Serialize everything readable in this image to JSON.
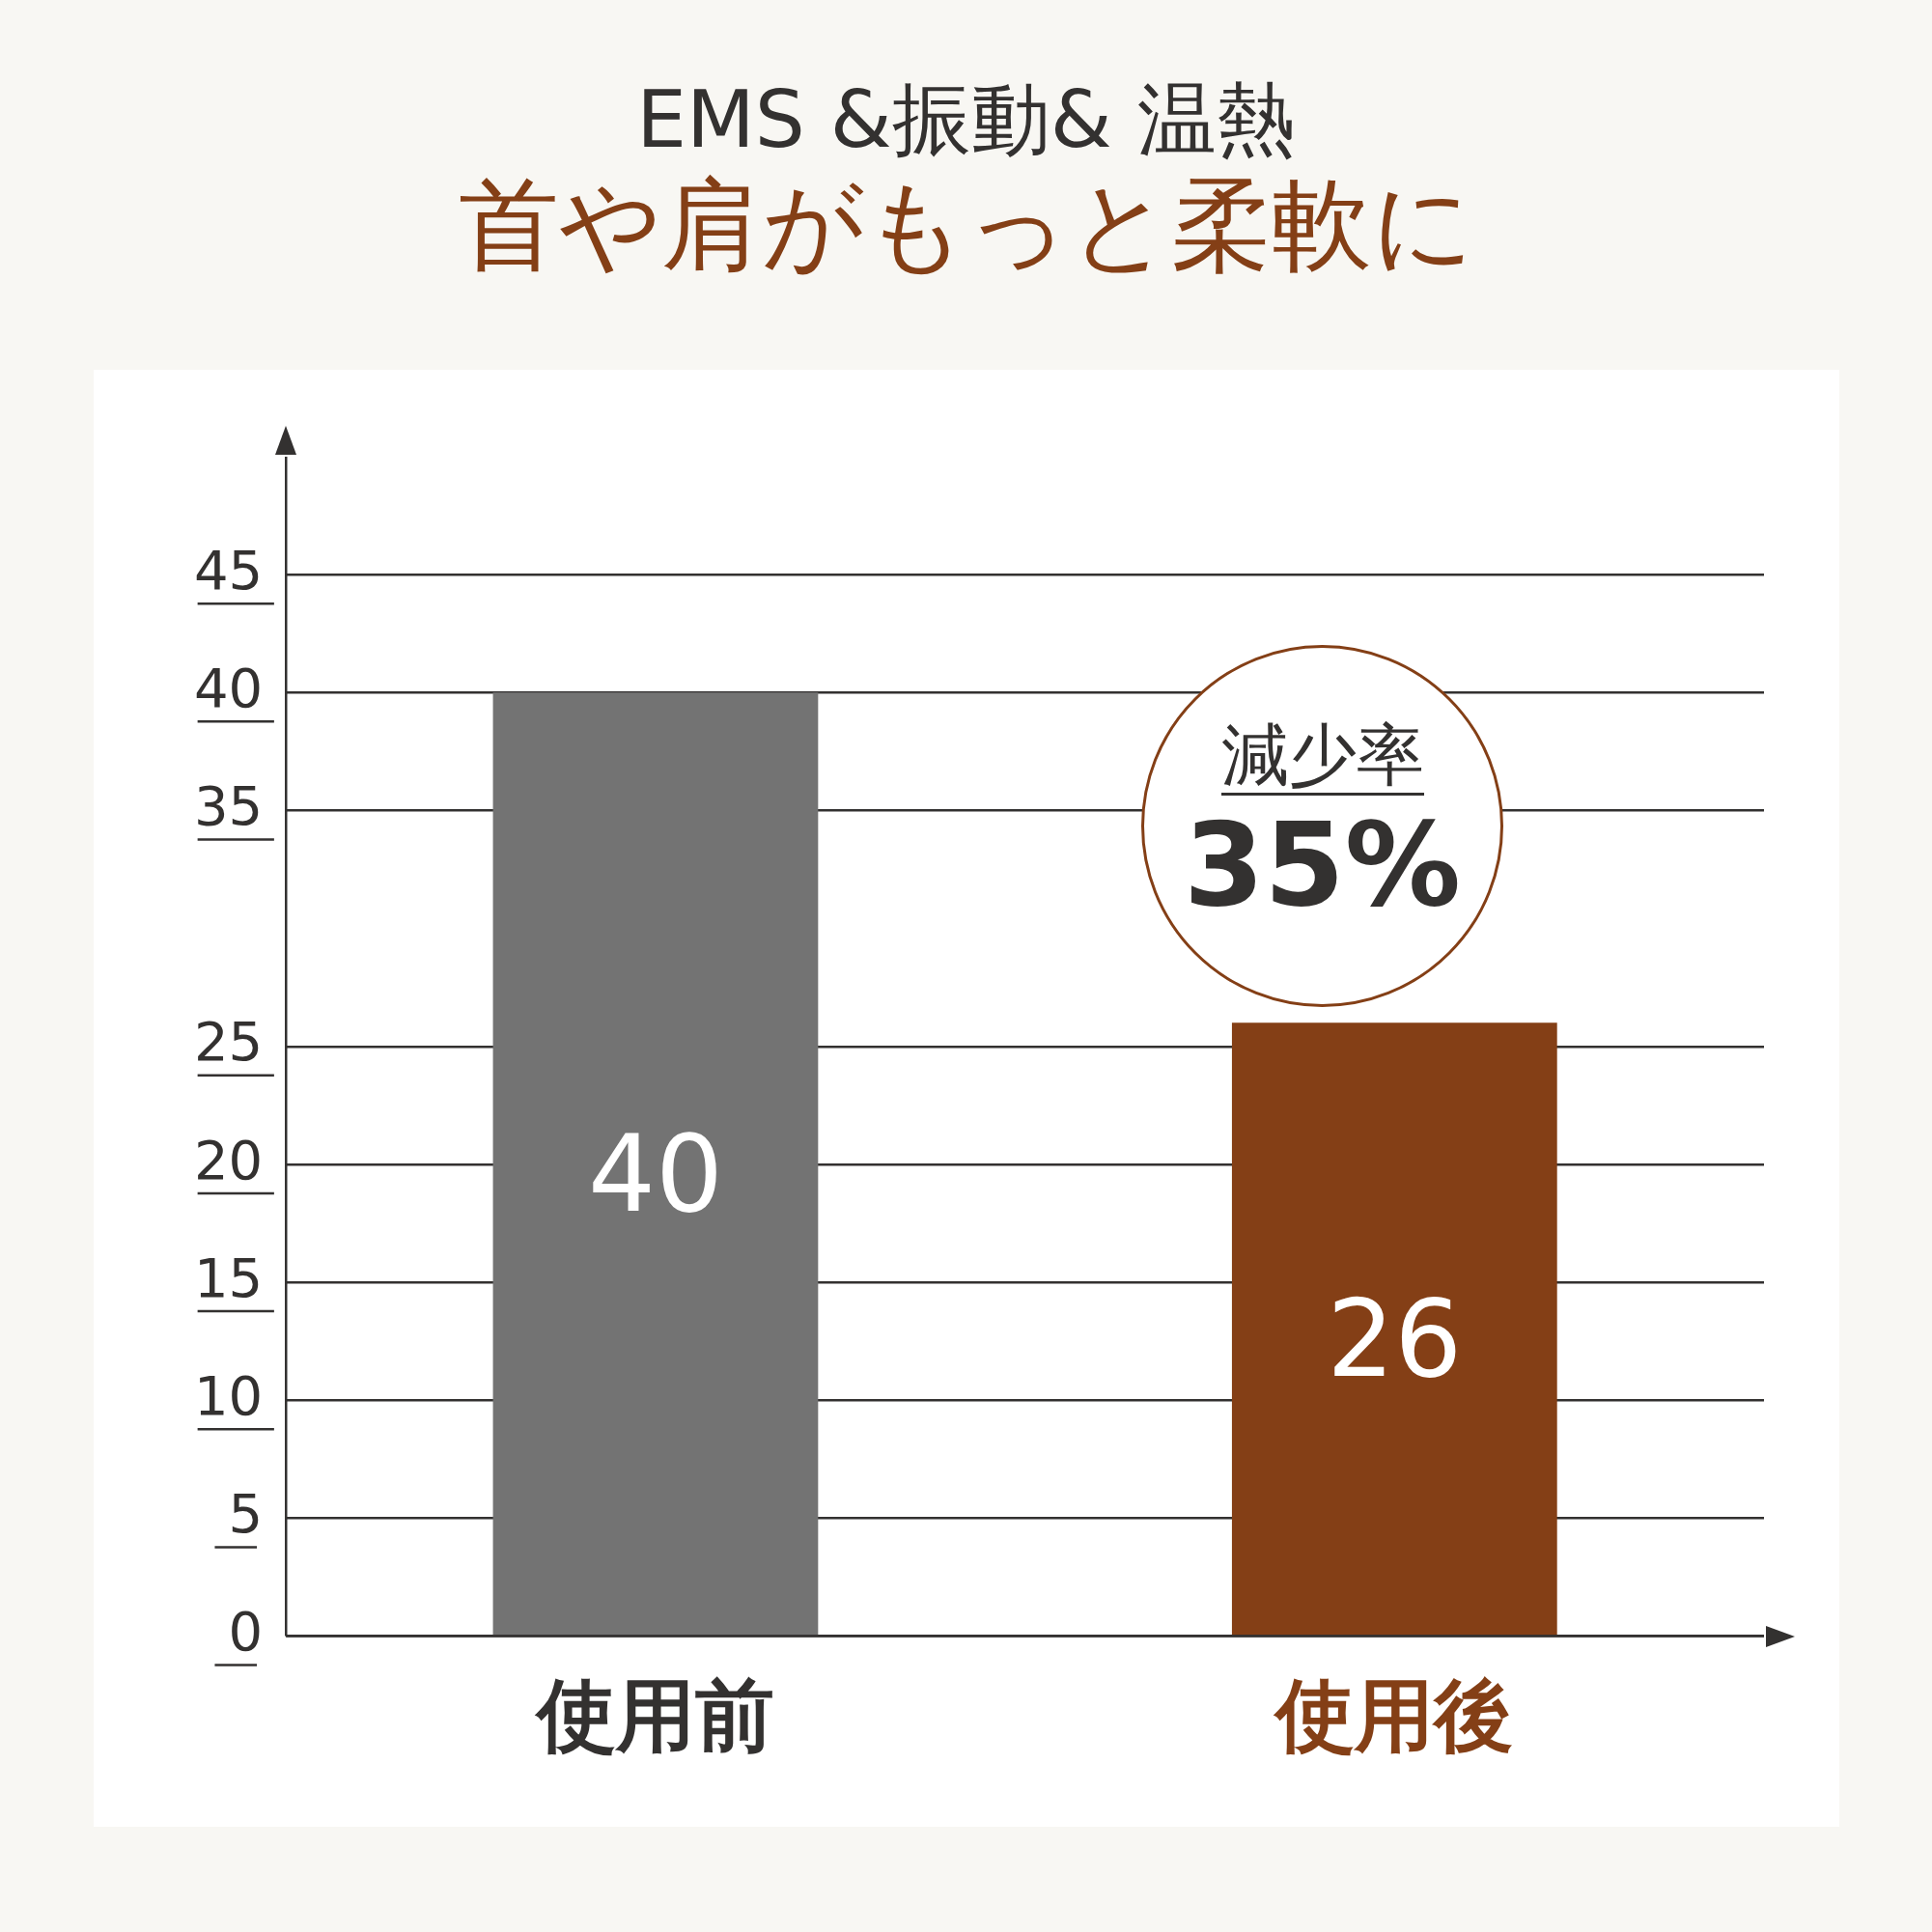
{
  "chart_data": {
    "type": "bar",
    "title": "EMS &振動& 温熱",
    "subtitle": "首や肩がもっと柔軟に",
    "categories": [
      "使用前",
      "使用後"
    ],
    "values": [
      40,
      26
    ],
    "colors": [
      "#737373",
      "#843f16"
    ],
    "ylim": [
      0,
      50
    ],
    "yticks": [
      0,
      5,
      10,
      15,
      20,
      25,
      35,
      40,
      45
    ],
    "grid": "y",
    "data_labels": true,
    "annotations": [
      "減少率",
      "35%"
    ]
  }
}
